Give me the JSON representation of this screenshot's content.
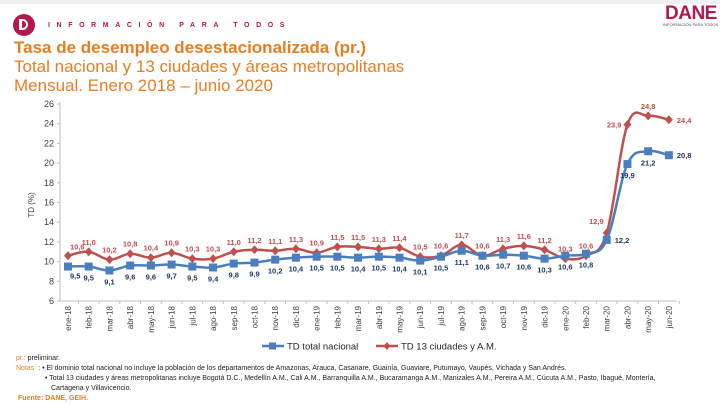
{
  "header": {
    "tagline": "INFORMACIÓN PARA TODOS",
    "brand": "DANE",
    "brand_sub": "INFORMACIÓN PARA TODOS",
    "title": "Tasa de desempleo desestacionalizada (pr.)",
    "subtitle": "Total nacional y 13 ciudades y áreas metropolitanas",
    "period": "Mensual. Enero 2018 – junio 2020",
    "brand_color": "#b5184a",
    "title_color": "#e67e22"
  },
  "chart_data": {
    "type": "line",
    "title": "Tasa de desempleo desestacionalizada (pr.)",
    "xlabel": "",
    "ylabel": "TD (%)",
    "ylim": [
      6,
      26
    ],
    "yticks": [
      6,
      8,
      10,
      12,
      14,
      16,
      18,
      20,
      22,
      24,
      26
    ],
    "grid": false,
    "legend": "bottom",
    "categories": [
      "ene-18",
      "feb-18",
      "mar-18",
      "abr-18",
      "may-18",
      "jun-18",
      "jul-18",
      "ago-18",
      "sep-18",
      "oct-18",
      "nov-18",
      "dic-18",
      "ene-19",
      "feb-19",
      "mar-19",
      "abr-19",
      "may-19",
      "jun-19",
      "jul-19",
      "ago-19",
      "sep-19",
      "oct-19",
      "nov-19",
      "dic-19",
      "ene-20",
      "feb-20",
      "mar-20",
      "abr-20",
      "may-20",
      "jun-20"
    ],
    "series": [
      {
        "name": "TD total nacional",
        "color": "#4a7ebf",
        "marker": "square",
        "values": [
          9.5,
          9.5,
          9.1,
          9.6,
          9.6,
          9.7,
          9.5,
          9.4,
          9.8,
          9.9,
          10.2,
          10.4,
          10.5,
          10.5,
          10.4,
          10.5,
          10.4,
          10.1,
          10.5,
          11.1,
          10.6,
          10.7,
          10.6,
          10.3,
          10.6,
          10.8,
          12.2,
          19.9,
          21.2,
          20.8
        ],
        "labels": [
          "9,5",
          "9,5",
          "9,1",
          "9,6",
          "9,6",
          "9,7",
          "9,5",
          "9,4",
          "9,8",
          "9,9",
          "10,2",
          "10,4",
          "10,5",
          "10,5",
          "10,4",
          "10,5",
          "10,4",
          "10,1",
          "10,5",
          "11,1",
          "10,6",
          "10,7",
          "10,6",
          "10,3",
          "10,6",
          "10,8",
          "12,2",
          "19,9",
          "21,2",
          "20,8"
        ]
      },
      {
        "name": "TD 13 ciudades y A.M.",
        "color": "#c0504d",
        "marker": "diamond",
        "values": [
          10.6,
          11.0,
          10.2,
          10.8,
          10.4,
          10.9,
          10.3,
          10.3,
          11.0,
          11.2,
          11.1,
          11.3,
          10.9,
          11.5,
          11.5,
          11.3,
          11.4,
          10.5,
          10.6,
          11.7,
          10.6,
          11.3,
          11.6,
          11.2,
          10.3,
          10.6,
          12.9,
          23.9,
          24.8,
          24.4
        ],
        "labels": [
          "10,6",
          "11,0",
          "10,2",
          "10,8",
          "10,4",
          "10,9",
          "10,3",
          "10,3",
          "11,0",
          "11,2",
          "11,1",
          "11,3",
          "10,9",
          "11,5",
          "11,5",
          "11,3",
          "11,4",
          "10,5",
          "10,6",
          "11,7",
          "10,6",
          "11,3",
          "11,6",
          "11,2",
          "10,3",
          "10,6",
          "12,9",
          "23,9",
          "24,8",
          "24,4"
        ]
      }
    ]
  },
  "footer": {
    "pr_label": "pr.:",
    "pr_text": " preliminar.",
    "notes_label": "Notas:",
    "note1": ": • El dominio total nacional no incluye la población de los departamentos de Amazonas, Arauca, Casanare, Guainía, Guaviare, Putumayo, Vaupés, Vichada y San Andrés.",
    "note2": "• Total 13 ciudades y áreas metropolitanas incluye Bogotá D.C., Medellín A.M., Cali A.M., Barranquilla A.M., Bucaramanga A.M., Manizales A.M., Pereira A.M., Cúcuta A.M., Pasto, Ibagué, Montería,",
    "note3": "Cartagena y Villavicencio.",
    "source": "Fuente: DANE, GEIH."
  }
}
